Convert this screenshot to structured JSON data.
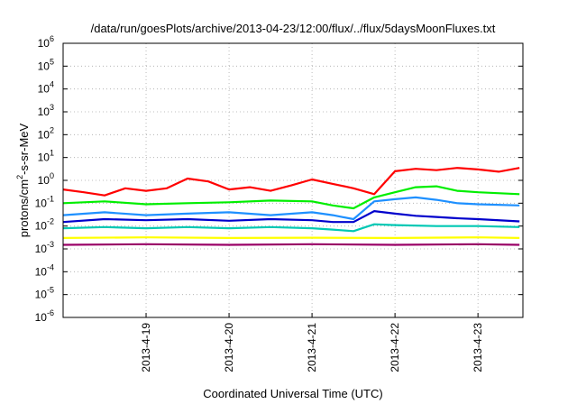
{
  "chart_data": {
    "type": "line",
    "title": "/data/run/goesPlots/archive/2013-04-23/12:00/flux/../flux/5daysMoonFluxes.txt",
    "xlabel": "Coordinated Universal Time (UTC)",
    "ylabel": "protons/cm2-s-sr-MeV",
    "y_scale": "log",
    "ylim": [
      1e-06,
      1000000.0
    ],
    "xlim": [
      "2013-04-18 00:00",
      "2013-04-23 13:00"
    ],
    "grid": true,
    "legend": "none",
    "x_ticks": [
      "2013-4-19",
      "2013-4-20",
      "2013-4-21",
      "2013-4-22",
      "2013-4-23"
    ],
    "y_ticks": [
      {
        "base": "10",
        "exp": "-6"
      },
      {
        "base": "10",
        "exp": "-5"
      },
      {
        "base": "10",
        "exp": "-4"
      },
      {
        "base": "10",
        "exp": "-3"
      },
      {
        "base": "10",
        "exp": "-2"
      },
      {
        "base": "10",
        "exp": "-1"
      },
      {
        "base": "10",
        "exp": "0"
      },
      {
        "base": "10",
        "exp": "1"
      },
      {
        "base": "10",
        "exp": "2"
      },
      {
        "base": "10",
        "exp": "3"
      },
      {
        "base": "10",
        "exp": "4"
      },
      {
        "base": "10",
        "exp": "5"
      },
      {
        "base": "10",
        "exp": "6"
      }
    ],
    "series": [
      {
        "color": "#ff0000",
        "x": [
          "2013-04-18 00:00",
          "2013-04-18 06:00",
          "2013-04-18 12:00",
          "2013-04-18 18:00",
          "2013-04-19 00:00",
          "2013-04-19 06:00",
          "2013-04-19 12:00",
          "2013-04-19 18:00",
          "2013-04-20 00:00",
          "2013-04-20 06:00",
          "2013-04-20 12:00",
          "2013-04-20 18:00",
          "2013-04-21 00:00",
          "2013-04-21 06:00",
          "2013-04-21 12:00",
          "2013-04-21 18:00",
          "2013-04-22 00:00",
          "2013-04-22 06:00",
          "2013-04-22 12:00",
          "2013-04-22 18:00",
          "2013-04-23 00:00",
          "2013-04-23 06:00",
          "2013-04-23 12:00"
        ],
        "y": [
          0.4,
          0.3,
          0.22,
          0.45,
          0.35,
          0.45,
          1.2,
          0.9,
          0.4,
          0.5,
          0.35,
          0.6,
          1.1,
          0.7,
          0.45,
          0.25,
          2.5,
          3.2,
          2.8,
          3.5,
          3.0,
          2.4,
          3.5
        ]
      },
      {
        "color": "#00ee00",
        "x": [
          "2013-04-18 00:00",
          "2013-04-18 12:00",
          "2013-04-19 00:00",
          "2013-04-19 12:00",
          "2013-04-20 00:00",
          "2013-04-20 12:00",
          "2013-04-21 00:00",
          "2013-04-21 06:00",
          "2013-04-21 12:00",
          "2013-04-21 18:00",
          "2013-04-22 00:00",
          "2013-04-22 06:00",
          "2013-04-22 12:00",
          "2013-04-22 18:00",
          "2013-04-23 00:00",
          "2013-04-23 12:00"
        ],
        "y": [
          0.1,
          0.12,
          0.09,
          0.1,
          0.11,
          0.13,
          0.12,
          0.08,
          0.06,
          0.18,
          0.3,
          0.5,
          0.55,
          0.35,
          0.3,
          0.25
        ]
      },
      {
        "color": "#1e90ff",
        "x": [
          "2013-04-18 00:00",
          "2013-04-18 12:00",
          "2013-04-19 00:00",
          "2013-04-19 12:00",
          "2013-04-20 00:00",
          "2013-04-20 12:00",
          "2013-04-21 00:00",
          "2013-04-21 06:00",
          "2013-04-21 12:00",
          "2013-04-21 18:00",
          "2013-04-22 00:00",
          "2013-04-22 06:00",
          "2013-04-22 12:00",
          "2013-04-22 18:00",
          "2013-04-23 00:00",
          "2013-04-23 12:00"
        ],
        "y": [
          0.03,
          0.04,
          0.03,
          0.035,
          0.04,
          0.03,
          0.04,
          0.03,
          0.02,
          0.12,
          0.15,
          0.18,
          0.14,
          0.1,
          0.09,
          0.08
        ]
      },
      {
        "color": "#0000cc",
        "x": [
          "2013-04-18 00:00",
          "2013-04-18 12:00",
          "2013-04-19 00:00",
          "2013-04-19 12:00",
          "2013-04-20 00:00",
          "2013-04-20 12:00",
          "2013-04-21 00:00",
          "2013-04-21 06:00",
          "2013-04-21 12:00",
          "2013-04-21 18:00",
          "2013-04-22 00:00",
          "2013-04-22 06:00",
          "2013-04-22 12:00",
          "2013-04-22 18:00",
          "2013-04-23 00:00",
          "2013-04-23 12:00"
        ],
        "y": [
          0.015,
          0.02,
          0.018,
          0.02,
          0.017,
          0.02,
          0.018,
          0.015,
          0.015,
          0.045,
          0.035,
          0.028,
          0.025,
          0.022,
          0.02,
          0.016
        ]
      },
      {
        "color": "#00c8b4",
        "x": [
          "2013-04-18 00:00",
          "2013-04-18 12:00",
          "2013-04-19 00:00",
          "2013-04-19 12:00",
          "2013-04-20 00:00",
          "2013-04-20 12:00",
          "2013-04-21 00:00",
          "2013-04-21 06:00",
          "2013-04-21 12:00",
          "2013-04-21 18:00",
          "2013-04-22 00:00",
          "2013-04-22 12:00",
          "2013-04-23 00:00",
          "2013-04-23 12:00"
        ],
        "y": [
          0.008,
          0.009,
          0.008,
          0.009,
          0.008,
          0.009,
          0.008,
          0.007,
          0.006,
          0.012,
          0.011,
          0.01,
          0.01,
          0.009
        ]
      },
      {
        "color": "#ffff00",
        "x": [
          "2013-04-18 00:00",
          "2013-04-19 00:00",
          "2013-04-20 00:00",
          "2013-04-21 00:00",
          "2013-04-22 00:00",
          "2013-04-23 00:00",
          "2013-04-23 12:00"
        ],
        "y": [
          0.003,
          0.0032,
          0.003,
          0.0031,
          0.003,
          0.0032,
          0.003
        ]
      },
      {
        "color": "#990066",
        "x": [
          "2013-04-18 00:00",
          "2013-04-19 00:00",
          "2013-04-20 00:00",
          "2013-04-21 00:00",
          "2013-04-22 00:00",
          "2013-04-23 00:00",
          "2013-04-23 12:00"
        ],
        "y": [
          0.0015,
          0.0016,
          0.0015,
          0.0016,
          0.0015,
          0.0016,
          0.0015
        ]
      }
    ]
  }
}
